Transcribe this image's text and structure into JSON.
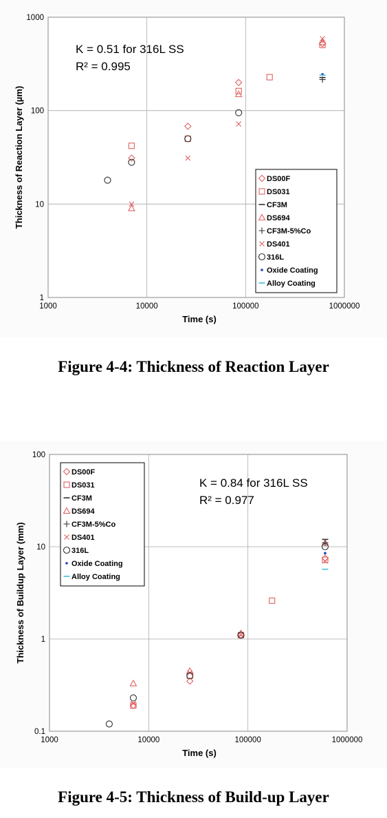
{
  "chart_data": [
    {
      "type": "scatter",
      "ylabel": "Thickness of Reaction Layer  (µm)",
      "xlabel": "Time  (s)",
      "xscale": "log",
      "yscale": "log",
      "xlim": [
        1000,
        1000000
      ],
      "ylim": [
        1,
        1000
      ],
      "xticks": [
        "1000",
        "10000",
        "100000",
        "1000000"
      ],
      "yticks": [
        "1",
        "10",
        "100",
        "1000"
      ],
      "grid": true,
      "legend_position": "lower-right",
      "annotation": [
        "K = 0.51 for 316L SS",
        "R² = 0.995"
      ],
      "series": [
        {
          "name": "DS00F",
          "marker": "diamond",
          "color": "#e06060",
          "points": [
            [
              7000,
              31
            ],
            [
              26000,
              68
            ],
            [
              85000,
              200
            ],
            [
              600000,
              520
            ]
          ]
        },
        {
          "name": "DS031",
          "marker": "square",
          "color": "#e06060",
          "points": [
            [
              7000,
              42
            ],
            [
              26000,
              50
            ],
            [
              85000,
              162
            ],
            [
              175000,
              228
            ],
            [
              600000,
              505
            ]
          ]
        },
        {
          "name": "CF3M",
          "marker": "dash",
          "color": "#303030",
          "points": [
            [
              600000,
              226
            ]
          ]
        },
        {
          "name": "DS694",
          "marker": "triangle",
          "color": "#e06060",
          "points": [
            [
              7000,
              9
            ],
            [
              85000,
              150
            ],
            [
              600000,
              540
            ]
          ]
        },
        {
          "name": "CF3M-5%Co",
          "marker": "plus",
          "color": "#303030",
          "points": [
            [
              600000,
              215
            ]
          ]
        },
        {
          "name": "DS401",
          "marker": "x",
          "color": "#e06060",
          "points": [
            [
              7000,
              10
            ],
            [
              26000,
              31
            ],
            [
              85000,
              72
            ],
            [
              600000,
              590
            ]
          ]
        },
        {
          "name": "316L",
          "marker": "circle",
          "color": "#303030",
          "points": [
            [
              4000,
              18
            ],
            [
              7000,
              28
            ],
            [
              26000,
              50
            ],
            [
              85000,
              95
            ]
          ]
        },
        {
          "name": "Oxide Coating",
          "marker": "dot",
          "color": "#2040c0",
          "points": [
            [
              600000,
              245
            ]
          ]
        },
        {
          "name": "Alloy Coating",
          "marker": "dash",
          "color": "#40c0e0",
          "points": [
            [
              600000,
              240
            ]
          ]
        }
      ]
    },
    {
      "type": "scatter",
      "ylabel": "Thickness of Buildup Layer  (mm)",
      "xlabel": "Time  (s)",
      "xscale": "log",
      "yscale": "log",
      "xlim": [
        1000,
        1000000
      ],
      "ylim": [
        0.1,
        100
      ],
      "xticks": [
        "1000",
        "10000",
        "100000",
        "1000000"
      ],
      "yticks": [
        "0.1",
        "1",
        "10",
        "100"
      ],
      "grid": true,
      "legend_position": "top-left",
      "annotation": [
        "K = 0.84 for 316L SS",
        "R² = 0.977"
      ],
      "series": [
        {
          "name": "DS00F",
          "marker": "diamond",
          "color": "#e06060",
          "points": [
            [
              7000,
              0.19
            ],
            [
              26000,
              0.35
            ],
            [
              85000,
              1.1
            ],
            [
              600000,
              7.5
            ]
          ]
        },
        {
          "name": "DS031",
          "marker": "square",
          "color": "#e06060",
          "points": [
            [
              7000,
              0.19
            ],
            [
              26000,
              0.4
            ],
            [
              85000,
              1.1
            ],
            [
              175000,
              2.6
            ],
            [
              600000,
              7.2
            ]
          ]
        },
        {
          "name": "CF3M",
          "marker": "dash",
          "color": "#303030",
          "points": [
            [
              600000,
              12
            ]
          ]
        },
        {
          "name": "DS694",
          "marker": "triangle",
          "color": "#e06060",
          "points": [
            [
              7000,
              0.33
            ],
            [
              26000,
              0.45
            ],
            [
              85000,
              1.15
            ],
            [
              600000,
              11
            ]
          ]
        },
        {
          "name": "CF3M-5%Co",
          "marker": "plus",
          "color": "#303030",
          "points": [
            [
              600000,
              11
            ]
          ]
        },
        {
          "name": "DS401",
          "marker": "x",
          "color": "#e06060",
          "points": [
            [
              7000,
              0.2
            ],
            [
              26000,
              0.43
            ],
            [
              85000,
              1.12
            ],
            [
              600000,
              7.0
            ]
          ]
        },
        {
          "name": "316L",
          "marker": "circle",
          "color": "#303030",
          "points": [
            [
              4000,
              0.12
            ],
            [
              7000,
              0.23
            ],
            [
              26000,
              0.4
            ],
            [
              85000,
              1.1
            ],
            [
              600000,
              10
            ]
          ]
        },
        {
          "name": "Oxide Coating",
          "marker": "dot",
          "color": "#2040c0",
          "points": [
            [
              600000,
              8.5
            ]
          ]
        },
        {
          "name": "Alloy Coating",
          "marker": "dash",
          "color": "#40c0e0",
          "points": [
            [
              600000,
              5.7
            ]
          ]
        }
      ]
    }
  ],
  "captions": {
    "figure_4_4": "Figure 4-4: Thickness of Reaction Layer",
    "figure_4_5": "Figure 4-5: Thickness of Build-up Layer"
  }
}
